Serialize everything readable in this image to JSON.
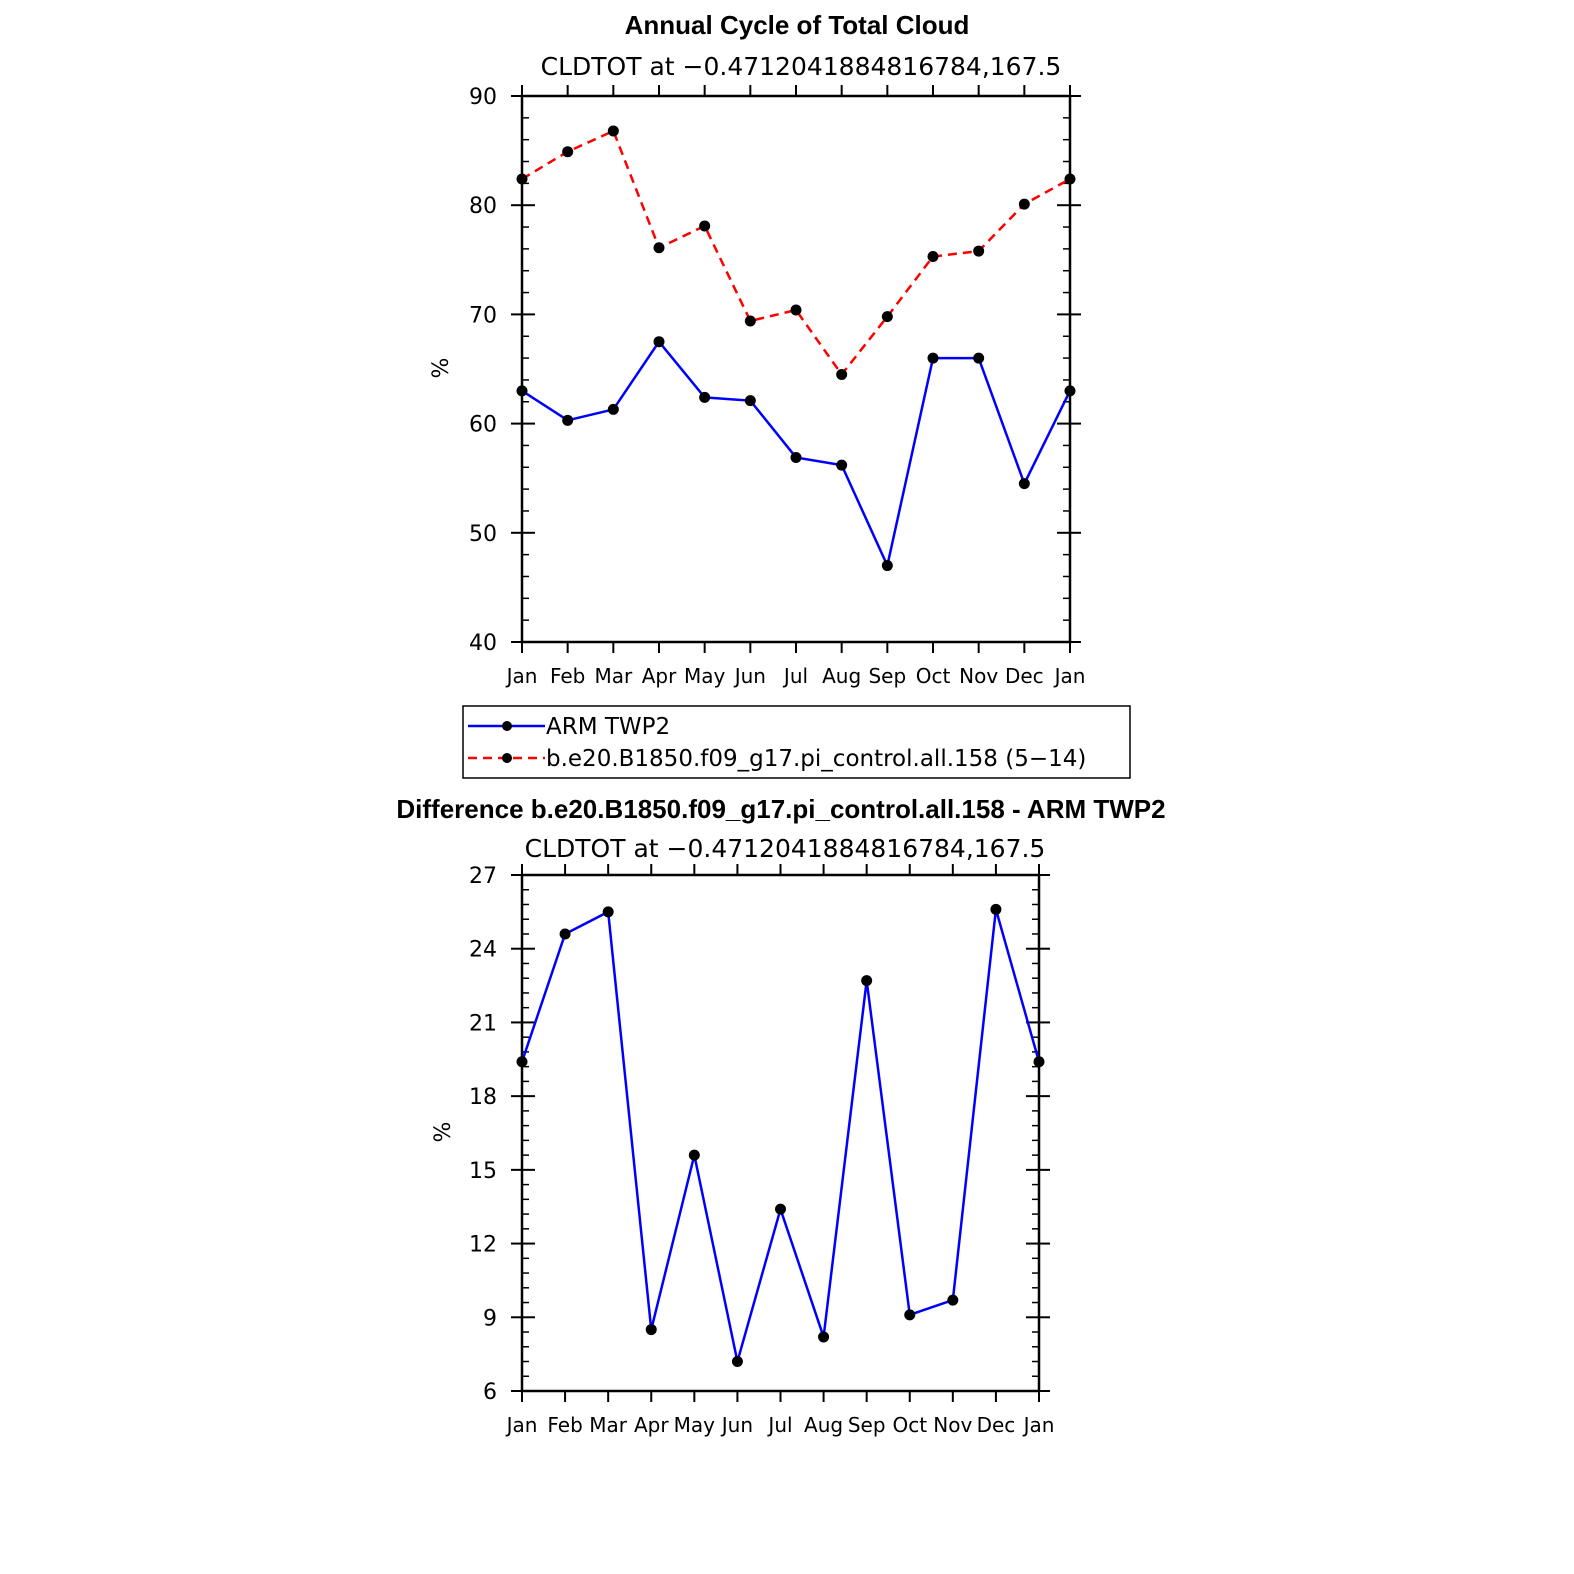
{
  "chart_data": [
    {
      "type": "line",
      "title": "Annual Cycle of Total Cloud",
      "subtitle": "CLDTOT at −0.4712041884816784,167.5",
      "ylabel": "%",
      "ylim": [
        40,
        90
      ],
      "yticks": [
        "40",
        "50",
        "60",
        "70",
        "80",
        "90"
      ],
      "categories": [
        "Jan",
        "Feb",
        "Mar",
        "Apr",
        "May",
        "Jun",
        "Jul",
        "Aug",
        "Sep",
        "Oct",
        "Nov",
        "Dec",
        "Jan"
      ],
      "series": [
        {
          "name": "ARM TWP2",
          "color": "#0000ff",
          "dash": "solid",
          "values": [
            63.0,
            60.3,
            61.3,
            67.5,
            62.4,
            62.1,
            56.9,
            56.2,
            47.0,
            66.0,
            66.0,
            54.5,
            63.0
          ]
        },
        {
          "name": "b.e20.B1850.f09_g17.pi_control.all.158 (5−14)",
          "color": "#ff0000",
          "dash": "dashed",
          "values": [
            82.4,
            84.9,
            86.8,
            76.1,
            78.1,
            69.4,
            70.4,
            64.5,
            69.8,
            75.3,
            75.8,
            80.1,
            82.4
          ]
        }
      ]
    },
    {
      "type": "line",
      "title": "Difference b.e20.B1850.f09_g17.pi_control.all.158 - ARM TWP2",
      "subtitle": "CLDTOT at −0.4712041884816784,167.5",
      "ylabel": "%",
      "ylim": [
        6,
        27
      ],
      "yticks": [
        "6",
        "9",
        "12",
        "15",
        "18",
        "21",
        "24",
        "27"
      ],
      "categories": [
        "Jan",
        "Feb",
        "Mar",
        "Apr",
        "May",
        "Jun",
        "Jul",
        "Aug",
        "Sep",
        "Oct",
        "Nov",
        "Dec",
        "Jan"
      ],
      "series": [
        {
          "name": "Difference",
          "color": "#0000ff",
          "dash": "solid",
          "values": [
            19.4,
            24.6,
            25.5,
            8.5,
            15.6,
            7.2,
            13.4,
            8.2,
            22.7,
            9.1,
            9.7,
            25.6,
            19.4
          ]
        }
      ]
    }
  ]
}
